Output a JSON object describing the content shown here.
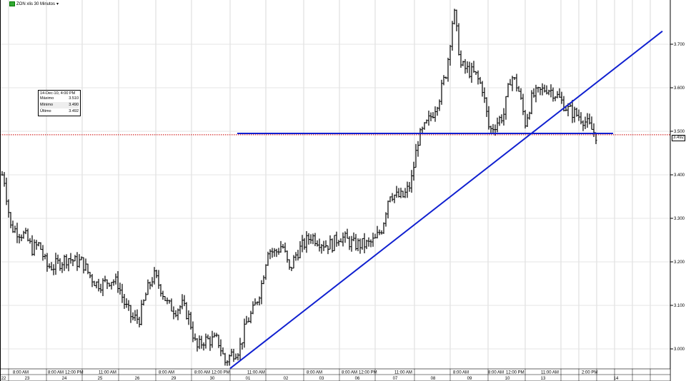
{
  "header": {
    "title": "ZON xlis 30 Minutos",
    "dropdown_icon": "caret-down-icon"
  },
  "info_box": {
    "date": "14-Dec-10, 4:00 PM",
    "rows": [
      {
        "label": "Máximo",
        "value": "3.510"
      },
      {
        "label": "Mínimo",
        "value": "3.490"
      },
      {
        "label": "Último",
        "value": "3.492"
      }
    ]
  },
  "last_price_label": "3.492",
  "colors": {
    "trendline": "#1020d0",
    "price_line": "#cc0000",
    "bars": "#000000",
    "grid": "#d8d8d8"
  },
  "chart_data": {
    "type": "ohlc",
    "yticks": [
      "3.000",
      "3.100",
      "3.200",
      "3.300",
      "3.400",
      "3.500",
      "3.600",
      "3.700"
    ],
    "ylim": [
      2.93,
      3.82
    ],
    "day_labels": [
      "22",
      "23",
      "24",
      "25",
      "26",
      "29",
      "30",
      "01",
      "02",
      "03",
      "06",
      "07",
      "08",
      "09",
      "10",
      "13",
      "14"
    ],
    "time_labels": [
      "8:00 AM",
      "8:00 AM",
      "12:00 PM",
      "11:00 AM",
      "8:00 AM",
      "8:00 AM",
      "12:00 PM",
      "11:00 AM",
      "8:00 AM",
      "8:00 AM",
      "12:00 PM",
      "11:00 AM",
      "8:00 AM",
      "8:00 AM",
      "12:00 PM",
      "11:00 AM",
      "2:00 PM"
    ],
    "closes": [
      3.4,
      3.28,
      3.27,
      3.26,
      3.23,
      3.24,
      3.19,
      3.19,
      3.2,
      3.21,
      3.2,
      3.2,
      3.17,
      3.15,
      3.15,
      3.16,
      3.15,
      3.1,
      3.07,
      3.07,
      3.13,
      3.17,
      3.14,
      3.1,
      3.09,
      3.1,
      3.07,
      3.0,
      3.02,
      3.02,
      3.02,
      2.97,
      2.99,
      3.0,
      3.06,
      3.09,
      3.14,
      3.23,
      3.22,
      3.24,
      3.18,
      3.22,
      3.24,
      3.26,
      3.25,
      3.24,
      3.24,
      3.26,
      3.25,
      3.24,
      3.24,
      3.24,
      3.25,
      3.28,
      3.36,
      3.35,
      3.35,
      3.38,
      3.48,
      3.51,
      3.54,
      3.58,
      3.64,
      3.78,
      3.65,
      3.64,
      3.63,
      3.6,
      3.5,
      3.52,
      3.54,
      3.63,
      3.6,
      3.52,
      3.58,
      3.59,
      3.6,
      3.59,
      3.57,
      3.55,
      3.54,
      3.53,
      3.51,
      3.49
    ],
    "last_price": 3.492,
    "trendlines": [
      {
        "type": "horizontal",
        "price": 3.495
      },
      {
        "type": "ascending",
        "start_price": 2.955,
        "end_price": 3.73
      }
    ],
    "grid": true
  }
}
